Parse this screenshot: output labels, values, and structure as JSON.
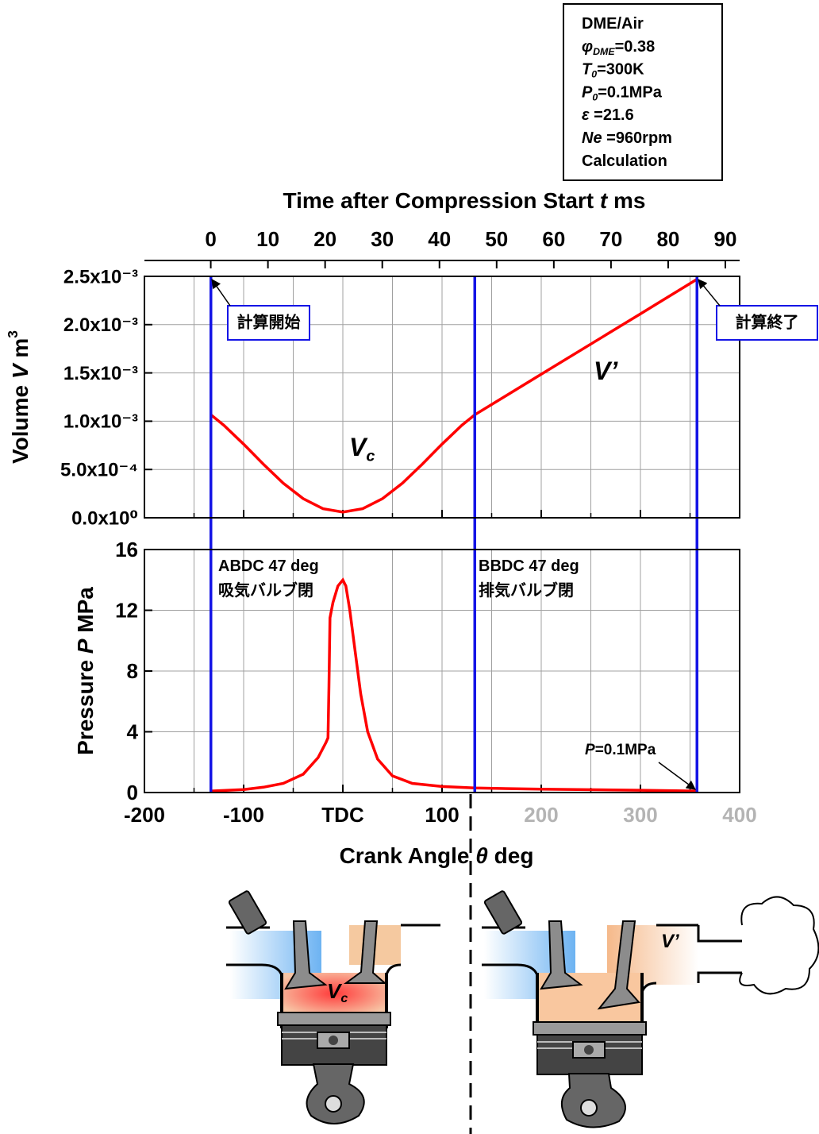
{
  "chart_data": [
    {
      "type": "line",
      "x": [
        -133,
        -120,
        -100,
        -80,
        -60,
        -40,
        -20,
        0,
        20,
        40,
        60,
        80,
        100,
        120,
        133,
        200,
        300,
        357
      ],
      "values": [
        0.001067,
        0.000958,
        0.000762,
        0.000554,
        0.000358,
        0.000198,
        9.4e-05,
        5.8e-05,
        9.4e-05,
        0.000198,
        0.000358,
        0.000554,
        0.000762,
        0.000958,
        0.001067,
        0.001486,
        0.002112,
        0.00247
      ],
      "color": "#ff0000",
      "xlim": [
        -200,
        400
      ],
      "xticks": [
        -200,
        -100,
        0,
        100,
        200,
        300,
        400
      ],
      "xminor": [
        -150,
        -50,
        50,
        150,
        250,
        350
      ],
      "ylim": [
        0,
        0.0025
      ],
      "yticks": [
        {
          "value": 0,
          "label": "0.0x10⁰"
        },
        {
          "value": 0.0005,
          "label": "5.0x10⁻⁴"
        },
        {
          "value": 0.001,
          "label": "1.0x10⁻³"
        },
        {
          "value": 0.0015,
          "label": "1.5x10⁻³"
        },
        {
          "value": 0.002,
          "label": "2.0x10⁻³"
        },
        {
          "value": 0.0025,
          "label": "2.5x10⁻³"
        }
      ],
      "ylabel": [
        {
          "text": "Volume "
        },
        {
          "text": "V",
          "style": "italic"
        },
        {
          "text": " m"
        },
        {
          "text": "3",
          "style": "sup"
        }
      ],
      "x2label": [
        {
          "text": "Time after Compression Start "
        },
        {
          "text": "t",
          "style": "italic"
        },
        {
          "text": " ms"
        }
      ],
      "x2lim": [
        -11.6,
        92.5
      ],
      "x2ticks": [
        0,
        10,
        20,
        30,
        40,
        50,
        60,
        70,
        80,
        90
      ],
      "grid": true,
      "vlines": [
        -133,
        133,
        357
      ],
      "vline_color": "#1414e6",
      "annotations": [
        [
          {
            "text": "V’",
            "style": "italic"
          }
        ],
        [
          {
            "text": "V",
            "style": "italic"
          },
          {
            "text": "c",
            "style": "italic-sub"
          }
        ]
      ],
      "callouts": [
        "計算開始",
        "計算終了"
      ]
    },
    {
      "type": "line",
      "x": [
        -133,
        -100,
        -80,
        -60,
        -40,
        -25,
        -17,
        -15,
        -14,
        -13,
        -10,
        -5,
        0,
        3,
        7,
        12,
        18,
        25,
        35,
        50,
        70,
        100,
        133,
        200,
        300,
        357
      ],
      "values": [
        0.1,
        0.2,
        0.35,
        0.6,
        1.2,
        2.3,
        3.3,
        3.6,
        7,
        11.5,
        12.5,
        13.6,
        14,
        13.6,
        12,
        9.5,
        6.5,
        4,
        2.2,
        1.1,
        0.6,
        0.4,
        0.3,
        0.22,
        0.15,
        0.1
      ],
      "color": "#ff0000",
      "xlim": [
        -200,
        400
      ],
      "xticks": [
        -200,
        -100,
        {
          "value": 0,
          "label": "TDC"
        },
        100,
        200,
        300,
        400
      ],
      "xtick_colors": [
        "#000000",
        "#000000",
        "#000000",
        "#000000",
        "#b4b4b4",
        "#b4b4b4",
        "#b4b4b4"
      ],
      "xminor": [
        -150,
        -50,
        50,
        150,
        250,
        350
      ],
      "xlabel": [
        {
          "text": "Crank Angle "
        },
        {
          "text": "θ",
          "style": "italic"
        },
        {
          "text": " deg"
        }
      ],
      "ylim": [
        0,
        16
      ],
      "yticks": [
        0,
        4,
        8,
        12,
        16
      ],
      "ylabel": [
        {
          "text": "Pressure "
        },
        {
          "text": "P",
          "style": "italic"
        },
        {
          "text": " MPa"
        }
      ],
      "grid": true,
      "vlines": [
        -133,
        133,
        357
      ],
      "vline_color": "#1414e6",
      "annotations": [
        [
          {
            "text": "ABDC 47 deg"
          }
        ],
        [
          {
            "text": "吸気バルブ閉"
          }
        ],
        [
          {
            "text": "BBDC 47 deg"
          }
        ],
        [
          {
            "text": "排気バルブ閉"
          }
        ],
        [
          {
            "text": "P",
            "style": "italic"
          },
          {
            "text": "=0.1MPa"
          }
        ]
      ]
    }
  ],
  "conditions": [
    [
      {
        "text": "DME/Air"
      }
    ],
    [
      {
        "text": "φ",
        "style": "italic"
      },
      {
        "text": "DME",
        "style": "italic-sub"
      },
      {
        "text": "=0.38"
      }
    ],
    [
      {
        "text": "T",
        "style": "italic"
      },
      {
        "text": "0",
        "style": "italic-sub"
      },
      {
        "text": "=300K"
      }
    ],
    [
      {
        "text": "P",
        "style": "italic"
      },
      {
        "text": "0",
        "style": "italic-sub"
      },
      {
        "text": "=0.1MPa"
      }
    ],
    [
      {
        "text": "ε",
        "style": "italic"
      },
      {
        "text": " =21.6"
      }
    ],
    [
      {
        "text": "Ne",
        "style": "italic"
      },
      {
        "text": " =960rpm"
      }
    ],
    [
      {
        "text": "Calculation"
      }
    ]
  ],
  "diagram_labels": [
    [
      {
        "text": "V",
        "style": "italic"
      },
      {
        "text": "c",
        "style": "italic-sub"
      }
    ],
    [
      {
        "text": "V’",
        "style": "italic"
      }
    ]
  ]
}
